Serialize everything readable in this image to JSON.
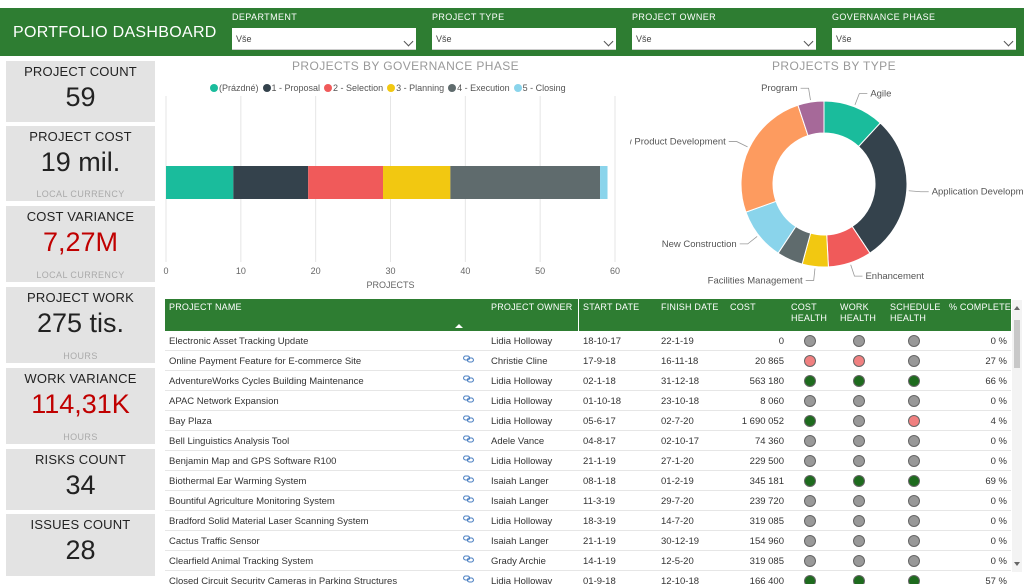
{
  "header": {
    "title": "PORTFOLIO DASHBOARD",
    "filters": [
      {
        "label": "DEPARTMENT",
        "value": "Vše"
      },
      {
        "label": "PROJECT TYPE",
        "value": "Vše"
      },
      {
        "label": "PROJECT OWNER",
        "value": "Vše"
      },
      {
        "label": "GOVERNANCE PHASE",
        "value": "Vše"
      }
    ]
  },
  "kpis": [
    {
      "label": "PROJECT COUNT",
      "value": "59",
      "unit": "",
      "alert": false
    },
    {
      "label": "PROJECT COST",
      "value": "19 mil.",
      "unit": "LOCAL CURRENCY",
      "alert": false
    },
    {
      "label": "COST VARIANCE",
      "value": "7,27M",
      "unit": "LOCAL CURRENCY",
      "alert": true
    },
    {
      "label": "PROJECT WORK",
      "value": "275 tis.",
      "unit": "HOURS",
      "alert": false
    },
    {
      "label": "WORK VARIANCE",
      "value": "114,31K",
      "unit": "HOURS",
      "alert": true
    },
    {
      "label": "RISKS COUNT",
      "value": "34",
      "unit": "",
      "alert": false
    },
    {
      "label": "ISSUES COUNT",
      "value": "28",
      "unit": "",
      "alert": false
    }
  ],
  "status_colors": {
    "gray": "#999999",
    "red": "#f08080",
    "green": "#1e6b1e"
  },
  "chart_data": [
    {
      "type": "bar",
      "orientation": "horizontal-stacked",
      "title": "PROJECTS BY GOVERNANCE PHASE",
      "xlabel": "PROJECTS",
      "xlim": [
        0,
        60
      ],
      "xticks": [
        "0",
        "10",
        "20",
        "30",
        "40",
        "50",
        "60"
      ],
      "grid": true,
      "legend_position": "top",
      "series": [
        {
          "name": "(Prázdné)",
          "value": 9,
          "color": "#1abc9c"
        },
        {
          "name": "1 - Proposal",
          "value": 10,
          "color": "#34424c"
        },
        {
          "name": "2 - Selection",
          "value": 10,
          "color": "#f05a5a"
        },
        {
          "name": "3 - Planning",
          "value": 9,
          "color": "#f2c811"
        },
        {
          "name": "4 - Execution",
          "value": 20,
          "color": "#5f6b6d"
        },
        {
          "name": "5 - Closing",
          "value": 1,
          "color": "#8ad4eb"
        }
      ]
    },
    {
      "type": "pie",
      "variant": "donut",
      "title": "PROJECTS BY TYPE",
      "slices": [
        {
          "label": "Agile",
          "value": 7,
          "color": "#1abc9c"
        },
        {
          "label": "Application Developm...",
          "value": 17,
          "color": "#34424c"
        },
        {
          "label": "Enhancement",
          "value": 5,
          "color": "#f05a5a"
        },
        {
          "label": "Facilities Management",
          "value": 3,
          "color": "#f2c811"
        },
        {
          "label": "",
          "value": 3,
          "color": "#5f6b6d"
        },
        {
          "label": "New Construction",
          "value": 6,
          "color": "#8ad4eb"
        },
        {
          "label": "New Product Development",
          "value": 15,
          "color": "#fd9b5f"
        },
        {
          "label": "Program",
          "value": 3,
          "color": "#a66999"
        }
      ]
    }
  ],
  "table": {
    "columns": [
      "PROJECT NAME",
      "PROJECT OWNER",
      "START DATE",
      "FINISH DATE",
      "COST",
      "COST HEALTH",
      "WORK HEALTH",
      "SCHEDULE HEALTH",
      "% COMPLETE"
    ],
    "rows": [
      {
        "name": "Electronic Asset Tracking Update",
        "link": false,
        "owner": "Lidia Holloway",
        "start": "18-10-17",
        "finish": "22-1-19",
        "cost": "0",
        "ch": "gray",
        "wh": "gray",
        "sh": "gray",
        "pct": "0 %"
      },
      {
        "name": "Online Payment Feature for E-commerce Site",
        "link": true,
        "owner": "Christie Cline",
        "start": "17-9-18",
        "finish": "16-11-18",
        "cost": "20 865",
        "ch": "red",
        "wh": "red",
        "sh": "gray",
        "pct": "27 %"
      },
      {
        "name": "AdventureWorks Cycles Building Maintenance",
        "link": true,
        "owner": "Lidia Holloway",
        "start": "02-1-18",
        "finish": "31-12-18",
        "cost": "563 180",
        "ch": "green",
        "wh": "green",
        "sh": "green",
        "pct": "66 %"
      },
      {
        "name": "APAC Network Expansion",
        "link": true,
        "owner": "Lidia Holloway",
        "start": "01-10-18",
        "finish": "23-10-18",
        "cost": "8 060",
        "ch": "gray",
        "wh": "gray",
        "sh": "gray",
        "pct": "0 %"
      },
      {
        "name": "Bay Plaza",
        "link": true,
        "owner": "Lidia Holloway",
        "start": "05-6-17",
        "finish": "02-7-20",
        "cost": "1 690 052",
        "ch": "green",
        "wh": "gray",
        "sh": "red",
        "pct": "4 %"
      },
      {
        "name": "Bell Linguistics Analysis Tool",
        "link": true,
        "owner": "Adele Vance",
        "start": "04-8-17",
        "finish": "02-10-17",
        "cost": "74 360",
        "ch": "gray",
        "wh": "gray",
        "sh": "gray",
        "pct": "0 %"
      },
      {
        "name": "Benjamin Map and GPS Software R100",
        "link": true,
        "owner": "Lidia Holloway",
        "start": "21-1-19",
        "finish": "27-1-20",
        "cost": "229 500",
        "ch": "gray",
        "wh": "gray",
        "sh": "gray",
        "pct": "0 %"
      },
      {
        "name": "Biothermal Ear Warming System",
        "link": true,
        "owner": "Isaiah Langer",
        "start": "08-1-18",
        "finish": "01-2-19",
        "cost": "345 181",
        "ch": "green",
        "wh": "green",
        "sh": "green",
        "pct": "69 %"
      },
      {
        "name": "Bountiful Agriculture Monitoring System",
        "link": true,
        "owner": "Isaiah Langer",
        "start": "11-3-19",
        "finish": "29-7-20",
        "cost": "239 720",
        "ch": "gray",
        "wh": "gray",
        "sh": "gray",
        "pct": "0 %"
      },
      {
        "name": "Bradford Solid Material Laser Scanning System",
        "link": true,
        "owner": "Lidia Holloway",
        "start": "18-3-19",
        "finish": "14-7-20",
        "cost": "319 085",
        "ch": "gray",
        "wh": "gray",
        "sh": "gray",
        "pct": "0 %"
      },
      {
        "name": "Cactus Traffic Sensor",
        "link": true,
        "owner": "Isaiah Langer",
        "start": "21-1-19",
        "finish": "30-12-19",
        "cost": "154 960",
        "ch": "gray",
        "wh": "gray",
        "sh": "gray",
        "pct": "0 %"
      },
      {
        "name": "Clearfield Animal Tracking System",
        "link": true,
        "owner": "Grady Archie",
        "start": "14-1-19",
        "finish": "12-5-20",
        "cost": "319 085",
        "ch": "gray",
        "wh": "gray",
        "sh": "gray",
        "pct": "0 %"
      },
      {
        "name": "Closed Circuit Security Cameras in Parking Structures",
        "link": true,
        "owner": "Lidia Holloway",
        "start": "01-9-18",
        "finish": "12-10-18",
        "cost": "166 400",
        "ch": "green",
        "wh": "green",
        "sh": "green",
        "pct": "57 %"
      }
    ]
  }
}
